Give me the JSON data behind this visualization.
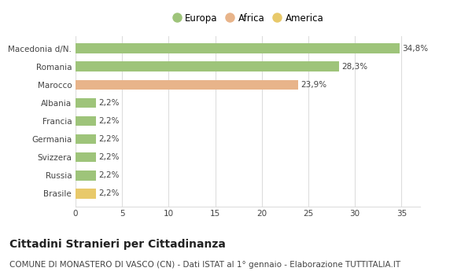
{
  "categories": [
    "Brasile",
    "Russia",
    "Svizzera",
    "Germania",
    "Francia",
    "Albania",
    "Marocco",
    "Romania",
    "Macedonia d/N."
  ],
  "values": [
    2.2,
    2.2,
    2.2,
    2.2,
    2.2,
    2.2,
    23.9,
    28.3,
    34.8
  ],
  "colors": [
    "#e8c96a",
    "#9ec47a",
    "#9ec47a",
    "#9ec47a",
    "#9ec47a",
    "#9ec47a",
    "#e8b48a",
    "#9ec47a",
    "#9ec47a"
  ],
  "labels": [
    "2,2%",
    "2,2%",
    "2,2%",
    "2,2%",
    "2,2%",
    "2,2%",
    "23,9%",
    "28,3%",
    "34,8%"
  ],
  "legend": [
    {
      "label": "Europa",
      "color": "#9ec47a"
    },
    {
      "label": "Africa",
      "color": "#e8b48a"
    },
    {
      "label": "America",
      "color": "#e8c96a"
    }
  ],
  "xlim": [
    0,
    37
  ],
  "xticks": [
    0,
    5,
    10,
    15,
    20,
    25,
    30,
    35
  ],
  "title": "Cittadini Stranieri per Cittadinanza",
  "subtitle": "COMUNE DI MONASTERO DI VASCO (CN) - Dati ISTAT al 1° gennaio - Elaborazione TUTTITALIA.IT",
  "title_fontsize": 10,
  "subtitle_fontsize": 7.5,
  "label_fontsize": 7.5,
  "tick_fontsize": 7.5,
  "legend_fontsize": 8.5,
  "bar_height": 0.55,
  "background_color": "#ffffff",
  "grid_color": "#dddddd",
  "text_color": "#444444"
}
